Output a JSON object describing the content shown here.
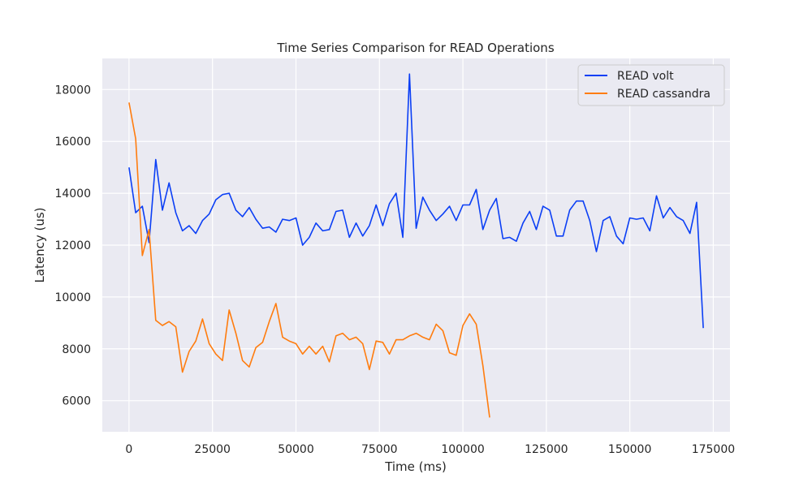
{
  "chart_data": {
    "type": "line",
    "title": "Time Series Comparison for READ Operations",
    "xlabel": "Time (ms)",
    "ylabel": "Latency (us)",
    "xlim": [
      -8000,
      180000
    ],
    "ylim": [
      4800,
      19200
    ],
    "x_ticks": [
      0,
      25000,
      50000,
      75000,
      100000,
      125000,
      150000,
      175000
    ],
    "y_ticks": [
      6000,
      8000,
      10000,
      12000,
      14000,
      16000,
      18000
    ],
    "grid": true,
    "legend_position": "top-right",
    "series": [
      {
        "name": "READ volt",
        "color": "#0b3ff5",
        "x": [
          0,
          2000,
          4000,
          6000,
          8000,
          10000,
          12000,
          14000,
          16000,
          18000,
          20000,
          22000,
          24000,
          26000,
          28000,
          30000,
          32000,
          34000,
          36000,
          38000,
          40000,
          42000,
          44000,
          46000,
          48000,
          50000,
          52000,
          54000,
          56000,
          58000,
          60000,
          62000,
          64000,
          66000,
          68000,
          70000,
          72000,
          74000,
          76000,
          78000,
          80000,
          82000,
          84000,
          86000,
          88000,
          90000,
          92000,
          94000,
          96000,
          98000,
          100000,
          102000,
          104000,
          106000,
          108000,
          110000,
          112000,
          114000,
          116000,
          118000,
          120000,
          122000,
          124000,
          126000,
          128000,
          130000,
          132000,
          134000,
          136000,
          138000,
          140000,
          142000,
          144000,
          146000,
          148000,
          150000,
          152000,
          154000,
          156000,
          158000,
          160000,
          162000,
          164000,
          166000,
          168000,
          170000,
          172000
        ],
        "y": [
          15000,
          13250,
          13500,
          12100,
          15300,
          13350,
          14400,
          13250,
          12550,
          12750,
          12450,
          12950,
          13200,
          13750,
          13950,
          14000,
          13350,
          13100,
          13450,
          13000,
          12650,
          12700,
          12500,
          13000,
          12950,
          13050,
          12000,
          12300,
          12850,
          12550,
          12600,
          13300,
          13350,
          12300,
          12850,
          12350,
          12750,
          13550,
          12750,
          13600,
          14000,
          12300,
          18600,
          12650,
          13850,
          13350,
          12950,
          13200,
          13500,
          12950,
          13550,
          13550,
          14150,
          12600,
          13350,
          13800,
          12250,
          12300,
          12150,
          12850,
          13300,
          12600,
          13500,
          13350,
          12350,
          12350,
          13350,
          13700,
          13700,
          12950,
          11750,
          12950,
          13100,
          12350,
          12050,
          13050,
          13000,
          13050,
          12550,
          13900,
          13050,
          13450,
          13100,
          12950,
          12450,
          13650,
          8800
        ]
      },
      {
        "name": "READ cassandra",
        "color": "#ff7c0e",
        "x": [
          0,
          2000,
          4000,
          6000,
          8000,
          10000,
          12000,
          14000,
          16000,
          18000,
          20000,
          22000,
          24000,
          26000,
          28000,
          30000,
          32000,
          34000,
          36000,
          38000,
          40000,
          42000,
          44000,
          46000,
          48000,
          50000,
          52000,
          54000,
          56000,
          58000,
          60000,
          62000,
          64000,
          66000,
          68000,
          70000,
          72000,
          74000,
          76000,
          78000,
          80000,
          82000,
          84000,
          86000,
          88000,
          90000,
          92000,
          94000,
          96000,
          98000,
          100000,
          102000,
          104000,
          106000,
          108000
        ],
        "y": [
          17500,
          16100,
          11600,
          12600,
          9100,
          8900,
          9050,
          8850,
          7100,
          7900,
          8300,
          9150,
          8200,
          7800,
          7550,
          9500,
          8600,
          7550,
          7300,
          8050,
          8250,
          9050,
          9750,
          8450,
          8300,
          8200,
          7800,
          8100,
          7800,
          8100,
          7500,
          8500,
          8600,
          8350,
          8450,
          8200,
          7200,
          8300,
          8250,
          7800,
          8350,
          8350,
          8500,
          8600,
          8450,
          8350,
          8950,
          8700,
          7850,
          7750,
          8900,
          9350,
          8950,
          7350,
          5350
        ]
      }
    ]
  }
}
